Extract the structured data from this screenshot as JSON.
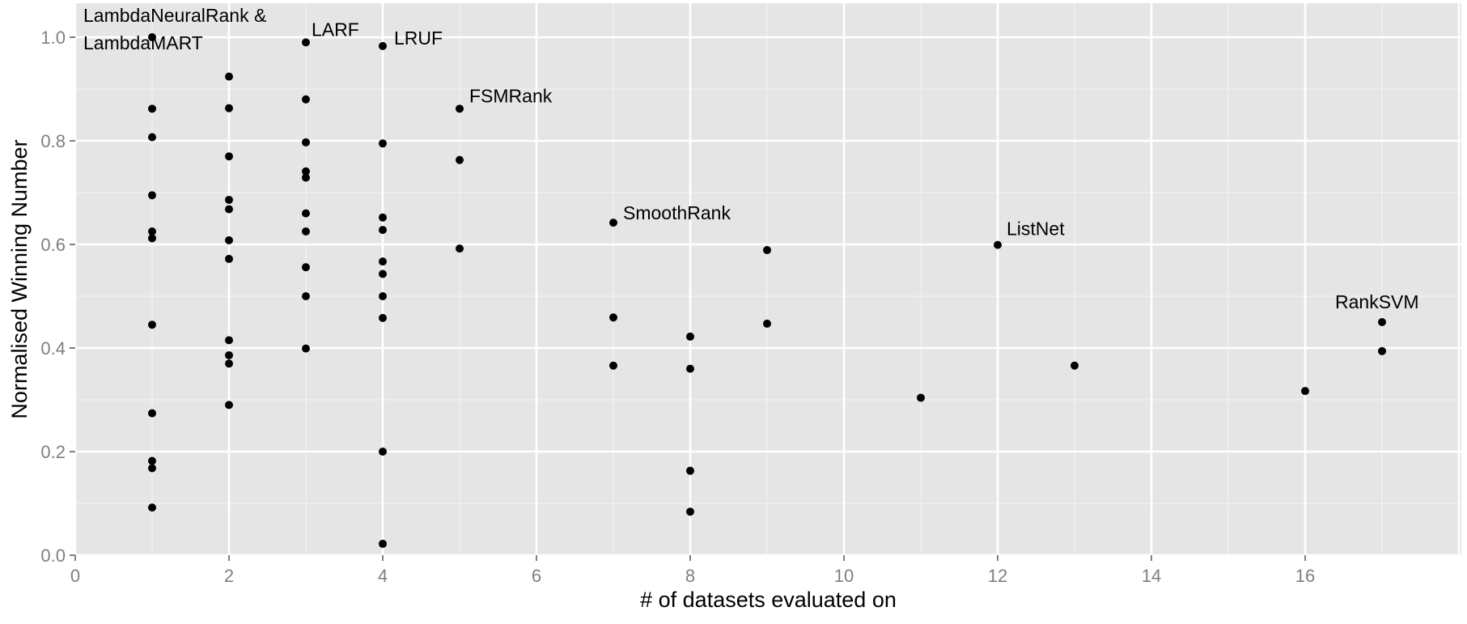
{
  "chart_data": {
    "type": "scatter",
    "title": "",
    "xlabel": "# of datasets evaluated on",
    "ylabel": "Normalised Winning Number",
    "xlim": [
      0,
      18
    ],
    "ylim": [
      0,
      1.0
    ],
    "x_ticks": [
      0,
      2,
      4,
      6,
      8,
      10,
      12,
      14,
      16
    ],
    "y_ticks": [
      0.0,
      0.2,
      0.4,
      0.6,
      0.8,
      1.0
    ],
    "x_tick_labels": [
      "0",
      "2",
      "4",
      "6",
      "8",
      "10",
      "12",
      "14",
      "16"
    ],
    "y_tick_labels": [
      "0.0",
      "0.2",
      "0.4",
      "0.6",
      "0.8",
      "1.0"
    ],
    "grid": true,
    "background": "#e5e5e5",
    "point_color": "#000000",
    "points": [
      {
        "x": 1,
        "y": 1.0
      },
      {
        "x": 1,
        "y": 0.862
      },
      {
        "x": 1,
        "y": 0.807
      },
      {
        "x": 1,
        "y": 0.695
      },
      {
        "x": 1,
        "y": 0.625
      },
      {
        "x": 1,
        "y": 0.612
      },
      {
        "x": 1,
        "y": 0.445
      },
      {
        "x": 1,
        "y": 0.274
      },
      {
        "x": 1,
        "y": 0.182
      },
      {
        "x": 1,
        "y": 0.168
      },
      {
        "x": 1,
        "y": 0.092
      },
      {
        "x": 2,
        "y": 0.924
      },
      {
        "x": 2,
        "y": 0.863
      },
      {
        "x": 2,
        "y": 0.77
      },
      {
        "x": 2,
        "y": 0.686
      },
      {
        "x": 2,
        "y": 0.668
      },
      {
        "x": 2,
        "y": 0.608
      },
      {
        "x": 2,
        "y": 0.572
      },
      {
        "x": 2,
        "y": 0.415
      },
      {
        "x": 2,
        "y": 0.386
      },
      {
        "x": 2,
        "y": 0.37
      },
      {
        "x": 2,
        "y": 0.29
      },
      {
        "x": 3,
        "y": 0.99
      },
      {
        "x": 3,
        "y": 0.88
      },
      {
        "x": 3,
        "y": 0.797
      },
      {
        "x": 3,
        "y": 0.741
      },
      {
        "x": 3,
        "y": 0.729
      },
      {
        "x": 3,
        "y": 0.66
      },
      {
        "x": 3,
        "y": 0.625
      },
      {
        "x": 3,
        "y": 0.556
      },
      {
        "x": 3,
        "y": 0.5
      },
      {
        "x": 3,
        "y": 0.399
      },
      {
        "x": 4,
        "y": 0.983
      },
      {
        "x": 4,
        "y": 0.795
      },
      {
        "x": 4,
        "y": 0.652
      },
      {
        "x": 4,
        "y": 0.628
      },
      {
        "x": 4,
        "y": 0.567
      },
      {
        "x": 4,
        "y": 0.543
      },
      {
        "x": 4,
        "y": 0.5
      },
      {
        "x": 4,
        "y": 0.458
      },
      {
        "x": 4,
        "y": 0.2
      },
      {
        "x": 4,
        "y": 0.022
      },
      {
        "x": 5,
        "y": 0.862
      },
      {
        "x": 5,
        "y": 0.763
      },
      {
        "x": 5,
        "y": 0.592
      },
      {
        "x": 7,
        "y": 0.642
      },
      {
        "x": 7,
        "y": 0.459
      },
      {
        "x": 7,
        "y": 0.366
      },
      {
        "x": 8,
        "y": 0.422
      },
      {
        "x": 8,
        "y": 0.36
      },
      {
        "x": 8,
        "y": 0.163
      },
      {
        "x": 8,
        "y": 0.084
      },
      {
        "x": 9,
        "y": 0.589
      },
      {
        "x": 9,
        "y": 0.447
      },
      {
        "x": 11,
        "y": 0.304
      },
      {
        "x": 12,
        "y": 0.599
      },
      {
        "x": 13,
        "y": 0.366
      },
      {
        "x": 16,
        "y": 0.317
      },
      {
        "x": 17,
        "y": 0.45
      },
      {
        "x": 17,
        "y": 0.394
      }
    ],
    "annotations": [
      {
        "lines": [
          "LambdaNeuralRank &",
          "LambdaMART"
        ],
        "x": 1,
        "y": 1.0
      },
      {
        "lines": [
          "LARF"
        ],
        "x": 3,
        "y": 0.99
      },
      {
        "lines": [
          "LRUF"
        ],
        "x": 4,
        "y": 0.983
      },
      {
        "lines": [
          "FSMRank"
        ],
        "x": 5,
        "y": 0.862
      },
      {
        "lines": [
          "SmoothRank"
        ],
        "x": 7,
        "y": 0.642
      },
      {
        "lines": [
          "ListNet"
        ],
        "x": 12,
        "y": 0.599
      },
      {
        "lines": [
          "RankSVM"
        ],
        "x": 17,
        "y": 0.45
      }
    ]
  }
}
